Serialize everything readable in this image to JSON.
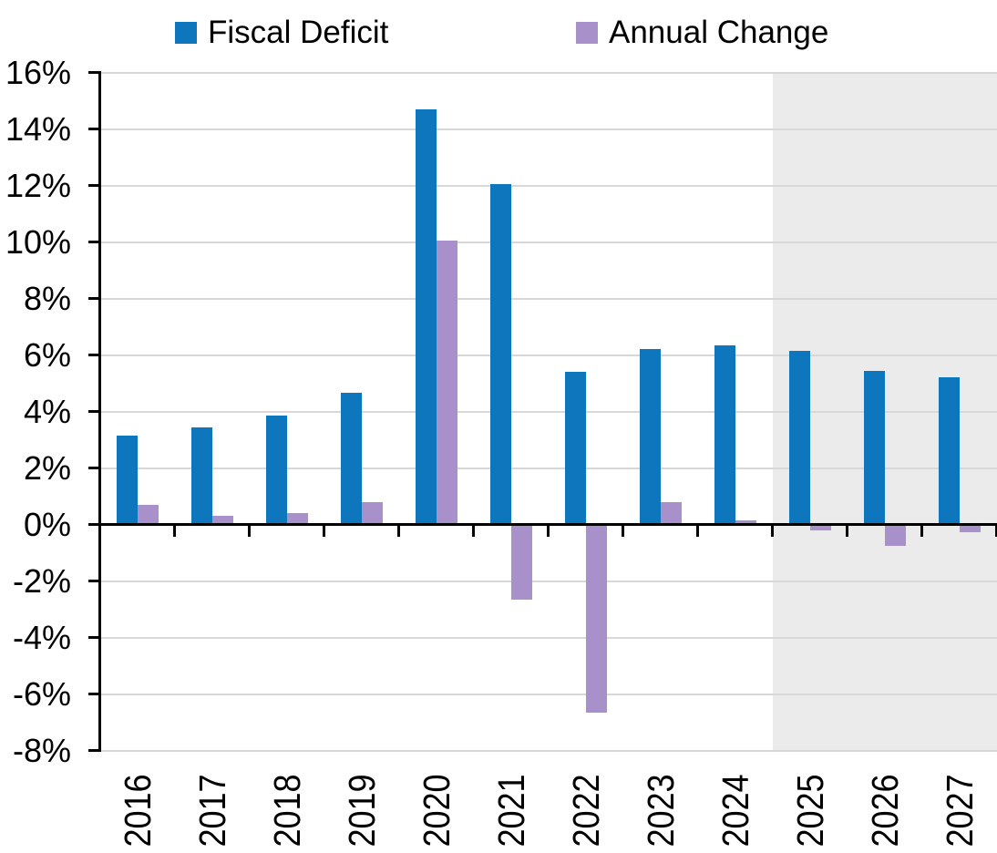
{
  "chart_data": {
    "type": "bar",
    "categories": [
      "2016",
      "2017",
      "2018",
      "2019",
      "2020",
      "2021",
      "2022",
      "2023",
      "2024",
      "2025",
      "2026",
      "2027"
    ],
    "series": [
      {
        "name": "Fiscal Deficit",
        "color": "#0E76BC",
        "values": [
          3.15,
          3.45,
          3.85,
          4.65,
          14.7,
          12.05,
          5.4,
          6.2,
          6.35,
          6.15,
          5.45,
          5.2
        ]
      },
      {
        "name": "Annual Change",
        "color": "#A890CB",
        "values": [
          0.7,
          0.3,
          0.4,
          0.8,
          10.05,
          -2.65,
          -6.65,
          0.8,
          0.15,
          -0.2,
          -0.75,
          -0.25
        ]
      }
    ],
    "ylim": [
      -8,
      16
    ],
    "ytick_step": 2,
    "ytick_labels": [
      "16%",
      "14%",
      "12%",
      "10%",
      "8%",
      "6%",
      "4%",
      "2%",
      "0%",
      "-2%",
      "-4%",
      "-6%",
      "-8%"
    ],
    "grid": true,
    "legend_position": "top",
    "forecast_region": {
      "from_category": "2025",
      "to_category": "2027",
      "color": "#EBEBEB"
    },
    "gridline_color": "#D8D8D8",
    "axis_color": "#000000"
  },
  "legend": {
    "items": [
      {
        "label": "Fiscal Deficit",
        "color": "#0E76BC"
      },
      {
        "label": "Annual Change",
        "color": "#A890CB"
      }
    ]
  }
}
